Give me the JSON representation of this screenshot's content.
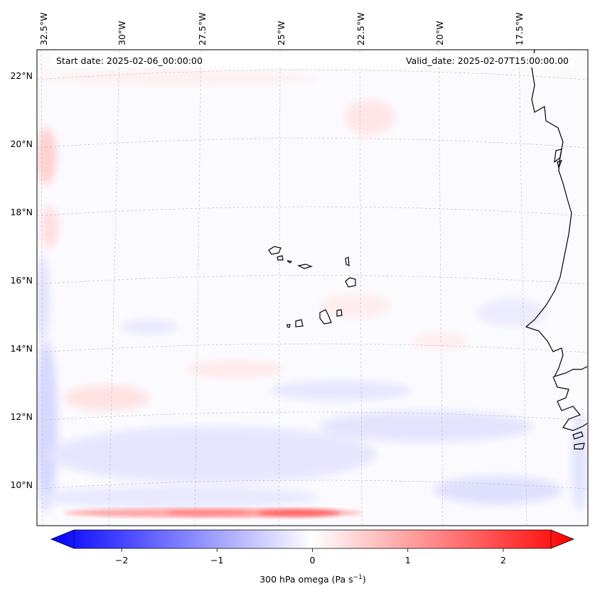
{
  "map": {
    "header": {
      "start_date": "Start date: 2025-02-06_00:00:00",
      "valid_date": "Valid_date: 2025-02-07T15:00:00.00"
    },
    "lon_labels": [
      "32.5°W",
      "30°W",
      "27.5°W",
      "25°W",
      "22.5°W",
      "20°W",
      "17.5°W"
    ],
    "lat_labels": [
      "22°N",
      "20°N",
      "18°N",
      "16°N",
      "14°N",
      "12°N",
      "10°N"
    ],
    "colorbar": {
      "ticks": [
        "−2",
        "−1",
        "0",
        "1",
        "2"
      ],
      "tick_values": [
        -2,
        -1,
        0,
        1,
        2
      ],
      "range": [
        -2.5,
        2.5
      ],
      "label_main": "300 hPa omega (Pa s",
      "label_sup": "−1",
      "label_end": ")"
    },
    "colors": {
      "negative": "#0000ff",
      "neutral": "#ffffff",
      "positive": "#ff0000",
      "coast": "#000000"
    }
  }
}
